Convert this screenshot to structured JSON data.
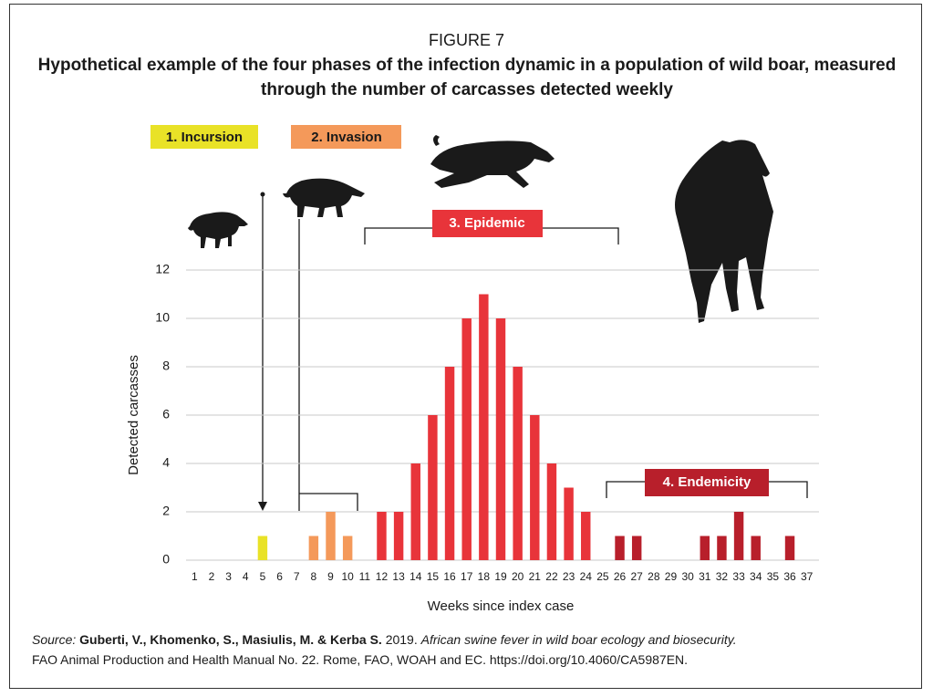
{
  "figure_label": "FIGURE 7",
  "chart_data": {
    "type": "bar",
    "title": "Hypothetical example of the four phases of the infection dynamic in a population of wild boar, measured through the number of carcasses detected weekly",
    "x_label": "Weeks since index case",
    "y_label": "Detected carcasses",
    "categories": [
      "1",
      "2",
      "3",
      "4",
      "5",
      "6",
      "7",
      "8",
      "9",
      "10",
      "11",
      "12",
      "13",
      "14",
      "15",
      "16",
      "17",
      "18",
      "19",
      "20",
      "21",
      "22",
      "23",
      "24",
      "25",
      "26",
      "27",
      "28",
      "29",
      "30",
      "31",
      "32",
      "33",
      "34",
      "35",
      "36",
      "37"
    ],
    "series": [
      {
        "name": "1. Incursion",
        "color": "#e9e227",
        "values": [
          0,
          0,
          0,
          0,
          1,
          0,
          null,
          null,
          null,
          null,
          null,
          null,
          null,
          null,
          null,
          null,
          null,
          null,
          null,
          null,
          null,
          null,
          null,
          null,
          null,
          null,
          null,
          null,
          null,
          null,
          null,
          null,
          null,
          null,
          null,
          null,
          null
        ]
      },
      {
        "name": "2. Invasion",
        "color": "#f4995a",
        "values": [
          null,
          null,
          null,
          null,
          null,
          null,
          0,
          1,
          2,
          1,
          null,
          null,
          null,
          null,
          null,
          null,
          null,
          null,
          null,
          null,
          null,
          null,
          null,
          null,
          null,
          null,
          null,
          null,
          null,
          null,
          null,
          null,
          null,
          null,
          null,
          null,
          null
        ]
      },
      {
        "name": "3. Epidemic",
        "color": "#e8343a",
        "values": [
          null,
          null,
          null,
          null,
          null,
          null,
          null,
          null,
          null,
          null,
          0,
          2,
          2,
          4,
          6,
          8,
          10,
          11,
          10,
          8,
          6,
          4,
          3,
          2,
          null,
          null,
          null,
          null,
          null,
          null,
          null,
          null,
          null,
          null,
          null,
          null,
          null
        ]
      },
      {
        "name": "4. Endemicity",
        "color": "#b81f2b",
        "values": [
          null,
          null,
          null,
          null,
          null,
          null,
          null,
          null,
          null,
          null,
          null,
          null,
          null,
          null,
          null,
          null,
          null,
          null,
          null,
          null,
          null,
          null,
          null,
          null,
          0,
          1,
          1,
          0,
          0,
          0,
          1,
          1,
          2,
          1,
          0,
          1,
          0
        ]
      }
    ],
    "ylim": [
      0,
      12
    ],
    "yticks": [
      0,
      2,
      4,
      6,
      8,
      10,
      12
    ],
    "grid": true
  },
  "source": {
    "label": "Source:",
    "authors": "Guberti, V., Khomenko, S., Masiulis, M. & Kerba S.",
    "year": "2019.",
    "book": "African swine fever in wild boar ecology and biosecurity.",
    "details": "FAO Animal Production and Health Manual No. 22. Rome, FAO, WOAH and EC. https://doi.org/10.4060/CA5987EN."
  }
}
